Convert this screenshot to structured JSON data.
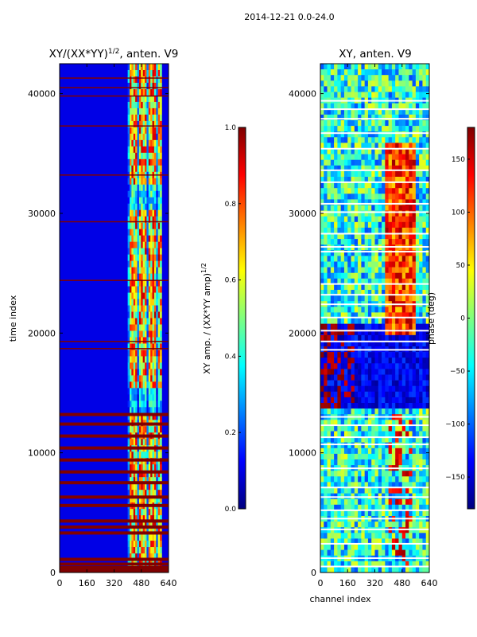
{
  "suptitle": "2014-12-21 0.0-24.0",
  "chart_data": [
    {
      "type": "heatmap",
      "title_main": "XY/(XX*YY)",
      "title_exp": "1/2",
      "title_tail": ", anten. V9",
      "xlabel": "",
      "ylabel": "time index",
      "xlim": [
        0,
        640
      ],
      "ylim": [
        0,
        42500
      ],
      "xticks": [
        0,
        160,
        320,
        480,
        640
      ],
      "yticks": [
        0,
        10000,
        20000,
        30000,
        40000
      ],
      "xtick_labels": [
        "0",
        "160",
        "320",
        "480",
        "640"
      ],
      "ytick_labels": [
        "0",
        "10000",
        "20000",
        "30000",
        "40000"
      ],
      "colormap": "jet",
      "colorbar": {
        "label_main": "XY amp. / (XX*YY amp)",
        "label_exp": "1/2",
        "range": [
          0.0,
          1.0
        ],
        "ticks": [
          0.0,
          0.2,
          0.4,
          0.6,
          0.8,
          1.0
        ],
        "tick_labels": [
          "0.0",
          "0.2",
          "0.4",
          "0.6",
          "0.8",
          "1.0"
        ]
      },
      "background_value": 0.1,
      "high_band": {
        "channel_range": [
          400,
          600
        ],
        "value_range": [
          0.4,
          0.95
        ]
      },
      "flagged_rows_value": 1.0,
      "flagged_rows": [
        150,
        400,
        700,
        1100,
        3300,
        3800,
        4300,
        5600,
        6300,
        7500,
        8400,
        9400,
        10400,
        11400,
        12400,
        13200,
        18700,
        19300,
        24400,
        29300,
        33200,
        37300,
        39800,
        40500,
        41300
      ]
    },
    {
      "type": "heatmap",
      "title_main": "XY, anten. V9",
      "xlabel": "channel index",
      "ylabel": "",
      "xlim": [
        0,
        640
      ],
      "ylim": [
        0,
        42500
      ],
      "xticks": [
        0,
        160,
        320,
        480,
        640
      ],
      "yticks": [
        0,
        10000,
        20000,
        30000,
        40000
      ],
      "xtick_labels": [
        "0",
        "160",
        "320",
        "480",
        "640"
      ],
      "ytick_labels": [
        "0",
        "10000",
        "20000",
        "30000",
        "40000"
      ],
      "colormap": "jet",
      "colorbar": {
        "label_main": "phase (deg)",
        "range": [
          -180,
          180
        ],
        "ticks": [
          -150,
          -100,
          -50,
          0,
          50,
          100,
          150
        ],
        "tick_labels": [
          "−150",
          "−100",
          "−50",
          "0",
          "50",
          "100",
          "150"
        ]
      },
      "dark_region": {
        "time_range": [
          13500,
          21000
        ],
        "value": -170
      },
      "warm_band": {
        "channel_range": [
          380,
          560
        ],
        "time_range": [
          20000,
          36000
        ],
        "value_range": [
          60,
          170
        ]
      },
      "flagged_rows": [
        500,
        1200,
        2400,
        3600,
        4500,
        5200,
        6300,
        7100,
        8700,
        10700,
        11300,
        12300,
        13000,
        18600,
        19300,
        20200,
        21300,
        22400,
        23200,
        24100,
        26800,
        27200,
        28300,
        30100,
        30800,
        32600,
        33600,
        35400,
        36700,
        37900,
        38700,
        39400
      ]
    }
  ]
}
